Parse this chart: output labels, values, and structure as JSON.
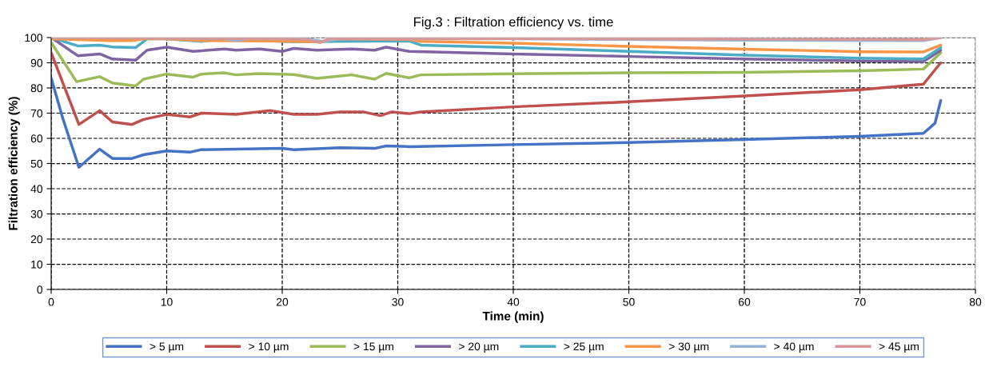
{
  "chart_data": {
    "type": "line",
    "title": "Fig.3 : Filtration efficiency vs. time",
    "xlabel": "Time (min)",
    "ylabel": "Filtration efficiency (%)",
    "xlim": [
      0,
      80
    ],
    "xticks": [
      0,
      10,
      20,
      30,
      40,
      50,
      60,
      70,
      80
    ],
    "ylim": [
      0,
      100
    ],
    "yticks": [
      0,
      10,
      20,
      30,
      40,
      50,
      60,
      70,
      80,
      90,
      100
    ],
    "grid": true,
    "legend": "bottom",
    "marker": "none",
    "line_style": "solid",
    "series": [
      {
        "name": "> 5 µm",
        "color": "#4472c4",
        "x": [
          0,
          1,
          2.4,
          4.2,
          5.3,
          7,
          8,
          10,
          12,
          13,
          20,
          21,
          25,
          28,
          29,
          31,
          40,
          50,
          60,
          70,
          75.5,
          76.5,
          77
        ],
        "values": [
          84,
          68,
          48.5,
          55.7,
          52,
          52,
          53.5,
          55,
          54.5,
          55.5,
          56,
          55.5,
          56.3,
          56,
          57,
          56.7,
          57.5,
          58.3,
          59.5,
          60.8,
          62,
          66,
          75
        ]
      },
      {
        "name": "> 10 µm",
        "color": "#c0504d",
        "x": [
          0,
          2.4,
          4.2,
          5.3,
          7,
          8,
          10,
          12,
          13,
          16,
          19,
          21,
          23,
          25,
          27,
          28.5,
          29.5,
          31,
          32,
          40,
          50,
          60,
          70,
          75.5,
          77
        ],
        "values": [
          94,
          65.5,
          71,
          66.5,
          65.5,
          67.5,
          69.5,
          68.5,
          70,
          69.5,
          71,
          69.5,
          69.5,
          70.5,
          70.5,
          69,
          70.5,
          69.8,
          70.5,
          72.5,
          74.5,
          76.8,
          79.3,
          81.5,
          90
        ]
      },
      {
        "name": "> 15 µm",
        "color": "#9bbb59",
        "x": [
          0,
          2.2,
          4.2,
          5.3,
          7.3,
          8,
          10,
          12.3,
          13,
          15,
          16,
          18,
          21,
          23,
          26,
          28,
          29,
          31,
          32,
          40,
          50,
          60,
          70,
          75.5,
          77
        ],
        "values": [
          98,
          82.5,
          84.5,
          82,
          80.8,
          83.5,
          85.5,
          84.3,
          85.5,
          86,
          85.2,
          85.7,
          85.3,
          83.8,
          85.2,
          83.5,
          85.8,
          84,
          85.2,
          85.6,
          86,
          86.2,
          86.8,
          87.5,
          94
        ]
      },
      {
        "name": "> 20 µm",
        "color": "#8064a2",
        "x": [
          0,
          2.3,
          4.2,
          5.3,
          7.3,
          8.3,
          10,
          12.3,
          15,
          16,
          18,
          20,
          21,
          23,
          26,
          28,
          29,
          31,
          40,
          50,
          60,
          70,
          75.5,
          77
        ],
        "values": [
          100,
          92.8,
          93.5,
          91.5,
          91,
          95,
          96.2,
          94.5,
          95.5,
          95,
          95.5,
          94.5,
          95.7,
          95,
          95.5,
          95,
          96.2,
          94.5,
          93.5,
          92.5,
          91.5,
          90.7,
          90.5,
          95
        ]
      },
      {
        "name": "> 25 µm",
        "color": "#4bacc6",
        "x": [
          0,
          2.3,
          4.2,
          5.3,
          7.3,
          8.3,
          10,
          13,
          15,
          20,
          21,
          25,
          28,
          31,
          32,
          40,
          50,
          60,
          70,
          75.5,
          77
        ],
        "values": [
          100,
          96.7,
          97,
          96.3,
          96,
          99.5,
          99.5,
          98.5,
          99.5,
          98.5,
          98.3,
          98.5,
          98.6,
          98.6,
          97,
          96,
          94.5,
          93,
          91.8,
          91.5,
          96
        ]
      },
      {
        "name": "> 30 µm",
        "color": "#f79646",
        "x": [
          0,
          5,
          7,
          8,
          10,
          13,
          20,
          23,
          25,
          31,
          32,
          40,
          50,
          60,
          70,
          75.5,
          77
        ],
        "values": [
          99.5,
          98.8,
          98.8,
          99.5,
          99.5,
          98.8,
          98.6,
          98.3,
          99.5,
          99.2,
          98.5,
          97.8,
          96.5,
          95.4,
          94.4,
          94.3,
          97
        ]
      },
      {
        "name": "> 40 µm",
        "color": "#95b3d7",
        "x": [
          0,
          10,
          15,
          16,
          17,
          22,
          23.5,
          25,
          40,
          60,
          75.5,
          77
        ],
        "values": [
          100,
          99.8,
          99.5,
          98.8,
          99.5,
          99.5,
          98.5,
          99.5,
          99.5,
          99,
          98.8,
          100
        ]
      },
      {
        "name": "> 45 µm",
        "color": "#d99694",
        "x": [
          0,
          20,
          22,
          23.3,
          24,
          40,
          60,
          75.5,
          77
        ],
        "values": [
          100,
          99.5,
          99.3,
          98,
          99.5,
          99.6,
          99.4,
          99.2,
          100
        ]
      }
    ]
  }
}
